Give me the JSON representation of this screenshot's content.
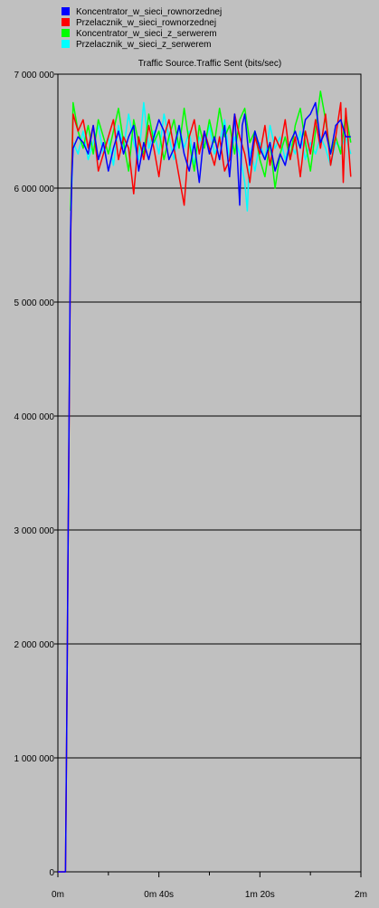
{
  "chart_data": {
    "type": "line",
    "title": "Traffic Source.Traffic Sent (bits/sec)",
    "xlabel": "",
    "ylabel": "",
    "xlim": [
      0,
      120
    ],
    "ylim": [
      0,
      7000000
    ],
    "grid": true,
    "legend_position": "top-left",
    "x_ticks": [
      {
        "value": 0,
        "label": "0m"
      },
      {
        "value": 40,
        "label": "0m 40s"
      },
      {
        "value": 80,
        "label": "1m 20s"
      },
      {
        "value": 120,
        "label": "2m"
      }
    ],
    "x_minor_ticks": [
      20,
      60,
      100
    ],
    "y_ticks": [
      {
        "value": 0,
        "label": "0"
      },
      {
        "value": 1000000,
        "label": "1 000 000"
      },
      {
        "value": 2000000,
        "label": "2 000 000"
      },
      {
        "value": 3000000,
        "label": "3 000 000"
      },
      {
        "value": 4000000,
        "label": "4 000 000"
      },
      {
        "value": 5000000,
        "label": "5 000 000"
      },
      {
        "value": 6000000,
        "label": "6 000 000"
      },
      {
        "value": 7000000,
        "label": "7 000 000"
      }
    ],
    "series": [
      {
        "name": "Koncentrator_w_sieci_rownorzednej",
        "color": "#0000ff",
        "points": [
          [
            0,
            0
          ],
          [
            3,
            0
          ],
          [
            3.5,
            1300000
          ],
          [
            4,
            2800000
          ],
          [
            4.5,
            4200000
          ],
          [
            5,
            5600000
          ],
          [
            5.5,
            6100000
          ],
          [
            6,
            6350000
          ],
          [
            8,
            6450000
          ],
          [
            10,
            6400000
          ],
          [
            12,
            6300000
          ],
          [
            14,
            6550000
          ],
          [
            16,
            6250000
          ],
          [
            18,
            6400000
          ],
          [
            20,
            6150000
          ],
          [
            22,
            6350000
          ],
          [
            24,
            6500000
          ],
          [
            26,
            6300000
          ],
          [
            28,
            6450000
          ],
          [
            30,
            6550000
          ],
          [
            32,
            6150000
          ],
          [
            34,
            6400000
          ],
          [
            36,
            6250000
          ],
          [
            38,
            6450000
          ],
          [
            40,
            6600000
          ],
          [
            42,
            6500000
          ],
          [
            44,
            6250000
          ],
          [
            46,
            6350000
          ],
          [
            48,
            6550000
          ],
          [
            50,
            6300000
          ],
          [
            52,
            6150000
          ],
          [
            54,
            6400000
          ],
          [
            56,
            6050000
          ],
          [
            58,
            6500000
          ],
          [
            60,
            6300000
          ],
          [
            62,
            6450000
          ],
          [
            64,
            6250000
          ],
          [
            66,
            6550000
          ],
          [
            68,
            6100000
          ],
          [
            70,
            6650000
          ],
          [
            71,
            6300000
          ],
          [
            72,
            5850000
          ],
          [
            73,
            6550000
          ],
          [
            74,
            6650000
          ],
          [
            76,
            6200000
          ],
          [
            78,
            6500000
          ],
          [
            80,
            6350000
          ],
          [
            82,
            6250000
          ],
          [
            84,
            6400000
          ],
          [
            86,
            6150000
          ],
          [
            88,
            6300000
          ],
          [
            90,
            6200000
          ],
          [
            92,
            6400000
          ],
          [
            94,
            6500000
          ],
          [
            96,
            6350000
          ],
          [
            98,
            6600000
          ],
          [
            100,
            6650000
          ],
          [
            102,
            6750000
          ],
          [
            104,
            6400000
          ],
          [
            106,
            6500000
          ],
          [
            108,
            6300000
          ],
          [
            110,
            6550000
          ],
          [
            112,
            6600000
          ],
          [
            114,
            6450000
          ],
          [
            116,
            6450000
          ]
        ]
      },
      {
        "name": "Przelacznik_w_sieci_rownorzednej",
        "color": "#ff0000",
        "points": [
          [
            0,
            0
          ],
          [
            3,
            0
          ],
          [
            3.5,
            1300000
          ],
          [
            4,
            2800000
          ],
          [
            4.5,
            4150000
          ],
          [
            5,
            5500000
          ],
          [
            5.5,
            6150000
          ],
          [
            6,
            6650000
          ],
          [
            8,
            6500000
          ],
          [
            10,
            6600000
          ],
          [
            12,
            6350000
          ],
          [
            14,
            6550000
          ],
          [
            16,
            6150000
          ],
          [
            18,
            6300000
          ],
          [
            20,
            6450000
          ],
          [
            22,
            6600000
          ],
          [
            24,
            6250000
          ],
          [
            26,
            6450000
          ],
          [
            28,
            6350000
          ],
          [
            30,
            5950000
          ],
          [
            32,
            6450000
          ],
          [
            34,
            6250000
          ],
          [
            36,
            6550000
          ],
          [
            38,
            6350000
          ],
          [
            40,
            6100000
          ],
          [
            42,
            6450000
          ],
          [
            44,
            6600000
          ],
          [
            46,
            6350000
          ],
          [
            48,
            6100000
          ],
          [
            50,
            5850000
          ],
          [
            52,
            6450000
          ],
          [
            54,
            6600000
          ],
          [
            56,
            6300000
          ],
          [
            58,
            6500000
          ],
          [
            60,
            6350000
          ],
          [
            62,
            6200000
          ],
          [
            64,
            6450000
          ],
          [
            66,
            6150000
          ],
          [
            68,
            6250000
          ],
          [
            70,
            6650000
          ],
          [
            72,
            6450000
          ],
          [
            74,
            6300000
          ],
          [
            76,
            6050000
          ],
          [
            78,
            6450000
          ],
          [
            80,
            6300000
          ],
          [
            82,
            6550000
          ],
          [
            84,
            6200000
          ],
          [
            86,
            6450000
          ],
          [
            88,
            6350000
          ],
          [
            90,
            6600000
          ],
          [
            92,
            6250000
          ],
          [
            94,
            6450000
          ],
          [
            96,
            6100000
          ],
          [
            98,
            6500000
          ],
          [
            100,
            6300000
          ],
          [
            102,
            6600000
          ],
          [
            104,
            6350000
          ],
          [
            106,
            6650000
          ],
          [
            108,
            6200000
          ],
          [
            110,
            6450000
          ],
          [
            112,
            6750000
          ],
          [
            113,
            6050000
          ],
          [
            114,
            6700000
          ],
          [
            116,
            6100000
          ]
        ]
      },
      {
        "name": "Koncentrator_w_sieci_z_serwerem",
        "color": "#00ff00",
        "points": [
          [
            5,
            5800000
          ],
          [
            5.5,
            6200000
          ],
          [
            6,
            6750000
          ],
          [
            8,
            6500000
          ],
          [
            10,
            6350000
          ],
          [
            12,
            6550000
          ],
          [
            14,
            6300000
          ],
          [
            16,
            6600000
          ],
          [
            18,
            6450000
          ],
          [
            20,
            6300000
          ],
          [
            22,
            6500000
          ],
          [
            24,
            6700000
          ],
          [
            26,
            6400000
          ],
          [
            28,
            6150000
          ],
          [
            30,
            6600000
          ],
          [
            32,
            6400000
          ],
          [
            34,
            6300000
          ],
          [
            36,
            6650000
          ],
          [
            38,
            6400000
          ],
          [
            40,
            6500000
          ],
          [
            42,
            6250000
          ],
          [
            44,
            6450000
          ],
          [
            46,
            6600000
          ],
          [
            48,
            6350000
          ],
          [
            50,
            6700000
          ],
          [
            52,
            6400000
          ],
          [
            54,
            6150000
          ],
          [
            56,
            6550000
          ],
          [
            58,
            6350000
          ],
          [
            60,
            6600000
          ],
          [
            62,
            6400000
          ],
          [
            64,
            6700000
          ],
          [
            66,
            6450000
          ],
          [
            68,
            6550000
          ],
          [
            70,
            6300000
          ],
          [
            72,
            6600000
          ],
          [
            74,
            6700000
          ],
          [
            76,
            6400000
          ],
          [
            78,
            6500000
          ],
          [
            80,
            6250000
          ],
          [
            82,
            6100000
          ],
          [
            84,
            6400000
          ],
          [
            86,
            6000000
          ],
          [
            88,
            6300000
          ],
          [
            90,
            6450000
          ],
          [
            92,
            6250000
          ],
          [
            94,
            6550000
          ],
          [
            96,
            6700000
          ],
          [
            98,
            6400000
          ],
          [
            100,
            6150000
          ],
          [
            102,
            6500000
          ],
          [
            104,
            6850000
          ],
          [
            106,
            6600000
          ],
          [
            108,
            6300000
          ],
          [
            110,
            6450000
          ],
          [
            112,
            6300000
          ],
          [
            114,
            6650000
          ],
          [
            116,
            6400000
          ]
        ]
      },
      {
        "name": "Przelacznik_w_sieci_z_serwerem",
        "color": "#00ffff",
        "points": [
          [
            5,
            5600000
          ],
          [
            5.5,
            6050000
          ],
          [
            6,
            6400000
          ],
          [
            8,
            6300000
          ],
          [
            10,
            6500000
          ],
          [
            12,
            6250000
          ],
          [
            14,
            6400000
          ],
          [
            16,
            6550000
          ],
          [
            18,
            6300000
          ],
          [
            20,
            6450000
          ],
          [
            22,
            6200000
          ],
          [
            24,
            6550000
          ],
          [
            26,
            6350000
          ],
          [
            28,
            6650000
          ],
          [
            30,
            6400000
          ],
          [
            32,
            6250000
          ],
          [
            34,
            6750000
          ],
          [
            36,
            6350000
          ],
          [
            38,
            6500000
          ],
          [
            40,
            6300000
          ],
          [
            42,
            6650000
          ],
          [
            44,
            6450000
          ],
          [
            46,
            6250000
          ],
          [
            48,
            6550000
          ],
          [
            50,
            6350000
          ],
          [
            52,
            6500000
          ],
          [
            54,
            6200000
          ],
          [
            56,
            6450000
          ],
          [
            58,
            6350000
          ],
          [
            60,
            6550000
          ],
          [
            62,
            6300000
          ],
          [
            64,
            6400000
          ],
          [
            66,
            6600000
          ],
          [
            68,
            6250000
          ],
          [
            70,
            6450000
          ],
          [
            72,
            6300000
          ],
          [
            74,
            6050000
          ],
          [
            75,
            5800000
          ],
          [
            76,
            6350000
          ],
          [
            78,
            6150000
          ],
          [
            80,
            6400000
          ],
          [
            82,
            6250000
          ],
          [
            84,
            6550000
          ],
          [
            86,
            6350000
          ],
          [
            88,
            6450000
          ],
          [
            90,
            6250000
          ],
          [
            92,
            6400000
          ],
          [
            94,
            6300000
          ],
          [
            96,
            6500000
          ],
          [
            98,
            6250000
          ],
          [
            100,
            6400000
          ],
          [
            102,
            6300000
          ],
          [
            104,
            6450000
          ],
          [
            106,
            6350000
          ],
          [
            108,
            6200000
          ],
          [
            110,
            6400000
          ],
          [
            112,
            6350000
          ],
          [
            114,
            6450000
          ],
          [
            116,
            6300000
          ]
        ]
      }
    ]
  }
}
